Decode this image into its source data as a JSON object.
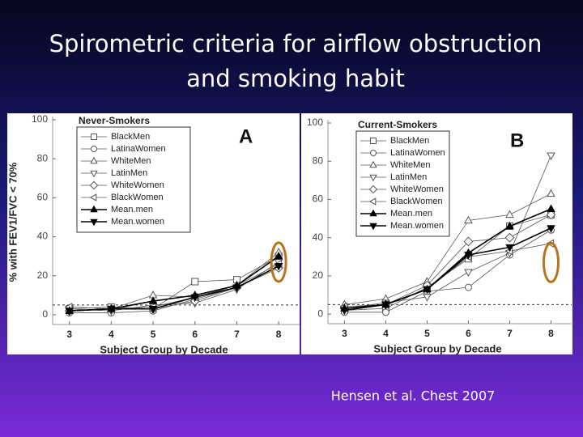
{
  "slide_title": [
    "Spirometric criteria for airflow obstruction",
    "and smoking habit"
  ],
  "citation": "Hensen et al. Chest  2007",
  "chart_data": [
    {
      "type": "line",
      "panel": "A",
      "title": "Never-Smokers",
      "ylabel": "% with FEV1/FVC < 70%",
      "xlabel": "Subject Group by Decade",
      "x": [
        3,
        4,
        5,
        6,
        7,
        8
      ],
      "xlim": [
        2.6,
        8.5
      ],
      "xticks": [
        3,
        4,
        5,
        6,
        7,
        8
      ],
      "ylim": [
        -5,
        100
      ],
      "yticks": [
        0,
        20,
        40,
        60,
        80,
        100
      ],
      "reference_line": 5,
      "legend": "upper left",
      "series": [
        {
          "name": "BlackMen",
          "color": "#555555",
          "marker": "square",
          "filled": false,
          "values": [
            3,
            4,
            3,
            17,
            18,
            30
          ]
        },
        {
          "name": "LatinaWomen",
          "color": "#555555",
          "marker": "circle",
          "filled": false,
          "values": [
            1,
            1,
            2,
            8,
            14,
            25
          ]
        },
        {
          "name": "WhiteMen",
          "color": "#555555",
          "marker": "triangle-up",
          "filled": false,
          "values": [
            2,
            3,
            10,
            9,
            15,
            32
          ]
        },
        {
          "name": "LatinMen",
          "color": "#555555",
          "marker": "triangle-down",
          "filled": false,
          "values": [
            3,
            2,
            5,
            6,
            13,
            27
          ]
        },
        {
          "name": "WhiteWomen",
          "color": "#555555",
          "marker": "diamond",
          "filled": false,
          "values": [
            2,
            3,
            3,
            7,
            14,
            24
          ]
        },
        {
          "name": "BlackWomen",
          "color": "#555555",
          "marker": "triangle-left",
          "filled": false,
          "values": [
            4,
            3,
            4,
            9,
            15,
            26
          ]
        },
        {
          "name": "Mean.men",
          "color": "#000000",
          "marker": "triangle-up",
          "filled": true,
          "values": [
            2,
            3,
            7,
            10,
            15,
            30
          ]
        },
        {
          "name": "Mean.women",
          "color": "#000000",
          "marker": "triangle-down",
          "filled": true,
          "values": [
            2,
            3,
            3,
            9,
            14,
            25
          ]
        }
      ]
    },
    {
      "type": "line",
      "panel": "B",
      "title": "Current-Smokers",
      "xlabel": "Subject Group by Decade",
      "x": [
        3,
        4,
        5,
        6,
        7,
        8
      ],
      "xlim": [
        2.6,
        8.5
      ],
      "xticks": [
        3,
        4,
        5,
        6,
        7,
        8
      ],
      "ylim": [
        -5,
        100
      ],
      "yticks": [
        0,
        20,
        40,
        60,
        80,
        100
      ],
      "reference_line": 5,
      "legend": "upper left",
      "series": [
        {
          "name": "BlackMen",
          "color": "#555555",
          "marker": "square",
          "filled": false,
          "values": [
            2,
            3,
            14,
            29,
            46,
            52
          ]
        },
        {
          "name": "LatinaWomen",
          "color": "#555555",
          "marker": "circle",
          "filled": false,
          "values": [
            1,
            1,
            12,
            14,
            31,
            44
          ]
        },
        {
          "name": "WhiteMen",
          "color": "#555555",
          "marker": "triangle-up",
          "filled": false,
          "values": [
            5,
            8,
            17,
            49,
            52,
            63
          ]
        },
        {
          "name": "LatinMen",
          "color": "#555555",
          "marker": "triangle-down",
          "filled": false,
          "values": [
            3,
            6,
            9,
            22,
            32,
            83
          ]
        },
        {
          "name": "WhiteWomen",
          "color": "#555555",
          "marker": "diamond",
          "filled": false,
          "values": [
            3,
            5,
            15,
            38,
            40,
            52
          ]
        },
        {
          "name": "BlackWomen",
          "color": "#555555",
          "marker": "triangle-left",
          "filled": false,
          "values": [
            4,
            5,
            13,
            30,
            33,
            37
          ]
        },
        {
          "name": "Mean.men",
          "color": "#000000",
          "marker": "triangle-up",
          "filled": true,
          "values": [
            3,
            5,
            13,
            32,
            46,
            55
          ]
        },
        {
          "name": "Mean.women",
          "color": "#000000",
          "marker": "triangle-down",
          "filled": true,
          "values": [
            2,
            5,
            13,
            31,
            35,
            45
          ]
        }
      ]
    }
  ]
}
